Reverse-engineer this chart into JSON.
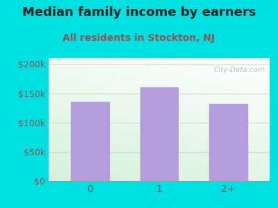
{
  "title": "Median family income by earners",
  "subtitle": "All residents in Stockton, NJ",
  "categories": [
    "0",
    "1",
    "2+"
  ],
  "values": [
    135000,
    160000,
    132000
  ],
  "bar_color": "#b39ddb",
  "yticks": [
    0,
    50000,
    100000,
    150000,
    200000
  ],
  "ytick_labels": [
    "$0",
    "$50k",
    "$100k",
    "$150k",
    "$200k"
  ],
  "ylim": [
    0,
    210000
  ],
  "background_outer": "#00e0e0",
  "title_fontsize": 13,
  "subtitle_fontsize": 10,
  "subtitle_color": "#9b4e4e",
  "tick_color": "#9b4e4e",
  "watermark": "City-Data.com"
}
